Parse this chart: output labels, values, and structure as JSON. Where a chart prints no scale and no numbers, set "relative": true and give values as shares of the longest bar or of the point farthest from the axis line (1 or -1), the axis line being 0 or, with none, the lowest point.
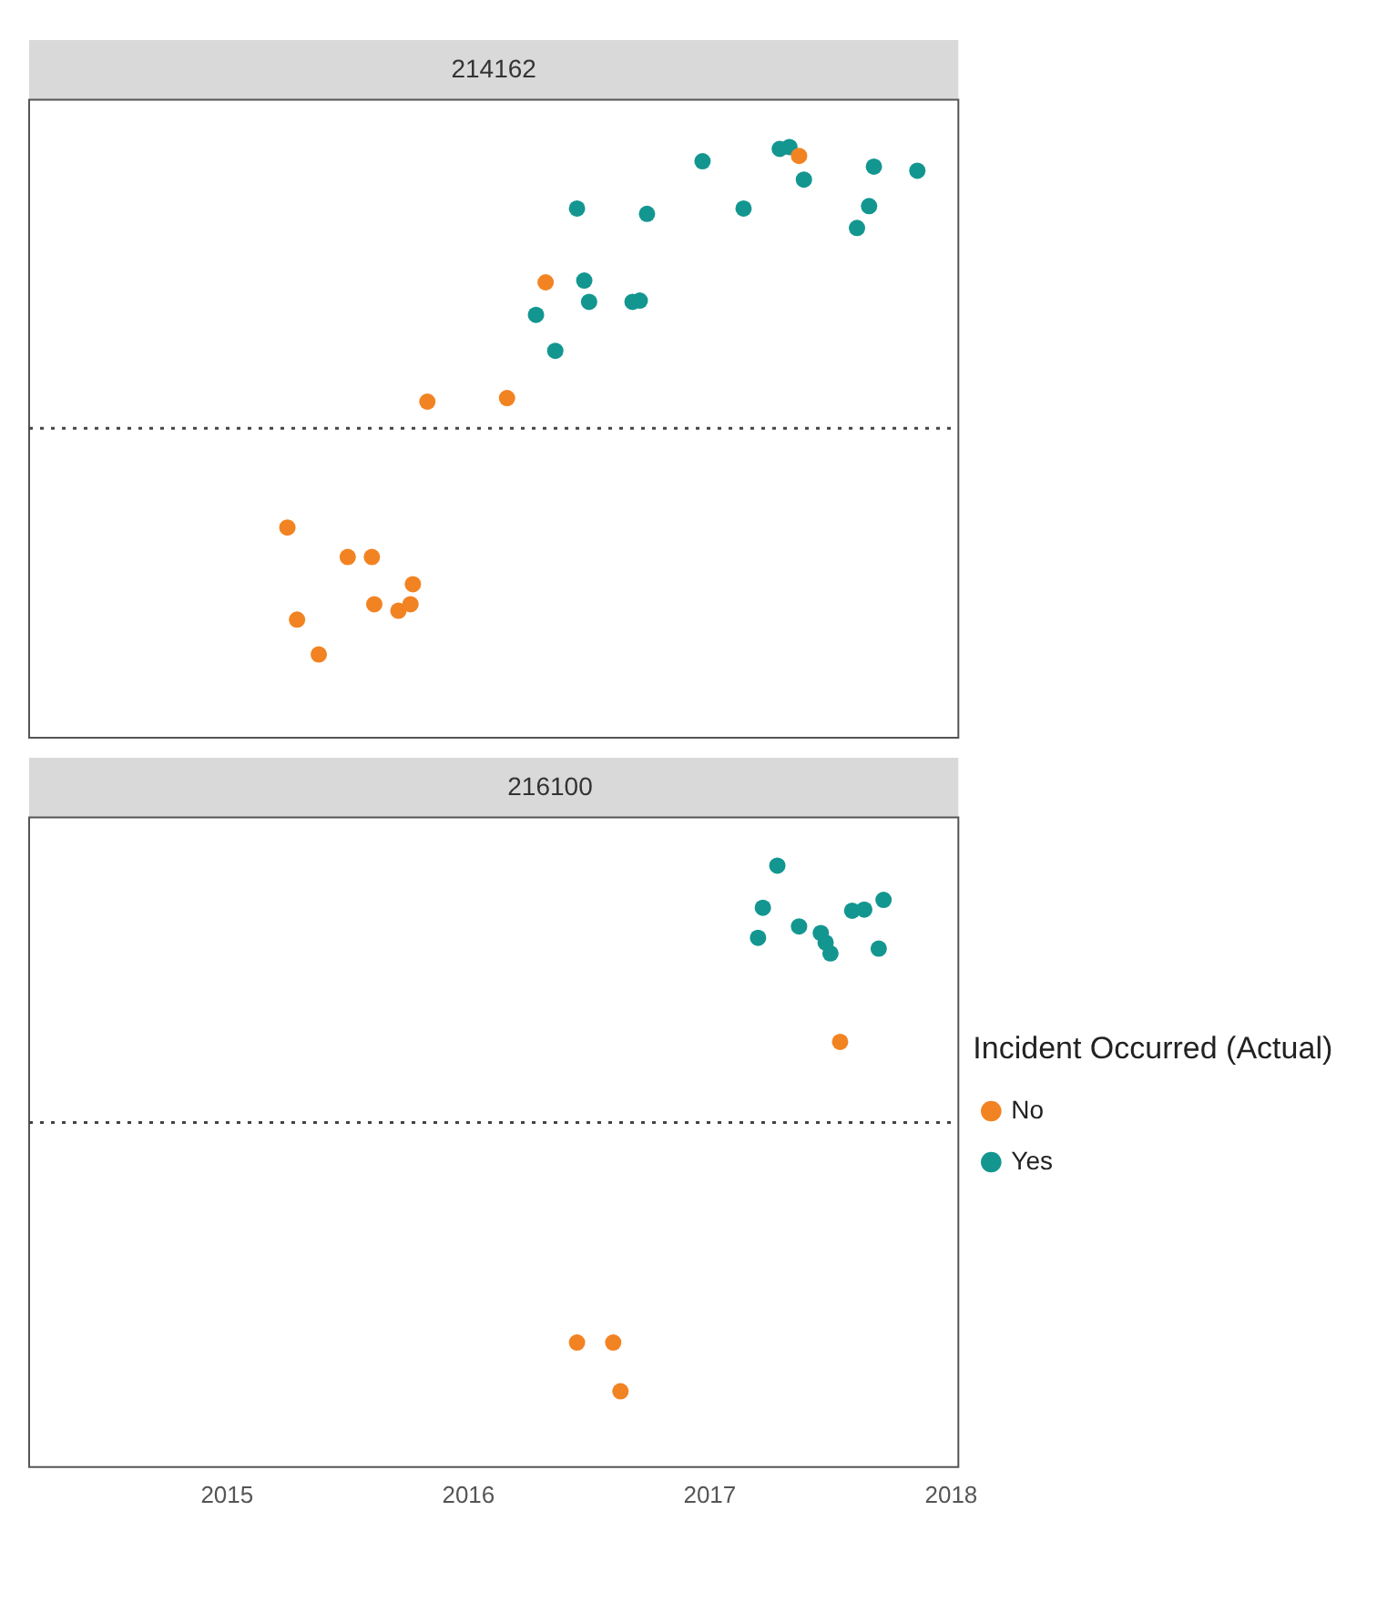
{
  "chart_data": [
    {
      "type": "scatter",
      "title": "214162",
      "relative": true,
      "marker": "circle",
      "tick_labels": false,
      "legend": false,
      "xlim": [
        2014.18,
        2018.03
      ],
      "xticks": [
        2015,
        2016,
        2017,
        2018
      ],
      "ref_lines": [
        {
          "axis": "y",
          "value": 0.524,
          "line_style": "dotted",
          "color": "#444444"
        }
      ],
      "series": [
        {
          "color": "#f28322",
          "x": [
            2017.37,
            2016.32,
            2015.83,
            2016.16,
            2015.25,
            2015.5,
            2015.6,
            2015.77,
            2015.61,
            2015.71,
            2015.76,
            2015.29,
            2015.38
          ],
          "values": [
            0.985,
            0.771,
            0.569,
            0.575,
            0.356,
            0.306,
            0.306,
            0.26,
            0.226,
            0.215,
            0.226,
            0.2,
            0.141
          ]
        },
        {
          "color": "#139690",
          "x": [
            2016.97,
            2017.29,
            2017.33,
            2017.39,
            2017.68,
            2017.86,
            2016.45,
            2016.74,
            2017.14,
            2017.66,
            2017.61,
            2016.48,
            2016.5,
            2016.68,
            2016.71,
            2016.28,
            2016.36
          ],
          "values": [
            0.976,
            0.997,
            1,
            0.945,
            0.967,
            0.96,
            0.896,
            0.887,
            0.896,
            0.9,
            0.863,
            0.774,
            0.738,
            0.738,
            0.74,
            0.716,
            0.655
          ]
        }
      ]
    },
    {
      "type": "scatter",
      "title": "216100",
      "relative": true,
      "marker": "circle",
      "tick_labels": "x",
      "legend": "right",
      "legend_title": "Incident Occurred (Actual)",
      "xlim": [
        2014.18,
        2018.03
      ],
      "xticks": [
        2015,
        2016,
        2017,
        2018
      ],
      "ref_lines": [
        {
          "axis": "y",
          "value": 0.573,
          "line_style": "dotted",
          "color": "#444444"
        }
      ],
      "series": [
        {
          "name": "No",
          "color": "#f28322",
          "x": [
            2017.54,
            2016.45,
            2016.6,
            2016.63
          ],
          "values": [
            0.707,
            0.207,
            0.207,
            0.126
          ]
        },
        {
          "name": "Yes",
          "color": "#139690",
          "x": [
            2017.28,
            2017.22,
            2017.2,
            2017.37,
            2017.46,
            2017.5,
            2017.59,
            2017.64,
            2017.72,
            2017.7,
            2017.48
          ],
          "values": [
            1,
            0.93,
            0.88,
            0.899,
            0.888,
            0.854,
            0.925,
            0.927,
            0.943,
            0.862,
            0.872
          ]
        }
      ]
    }
  ]
}
